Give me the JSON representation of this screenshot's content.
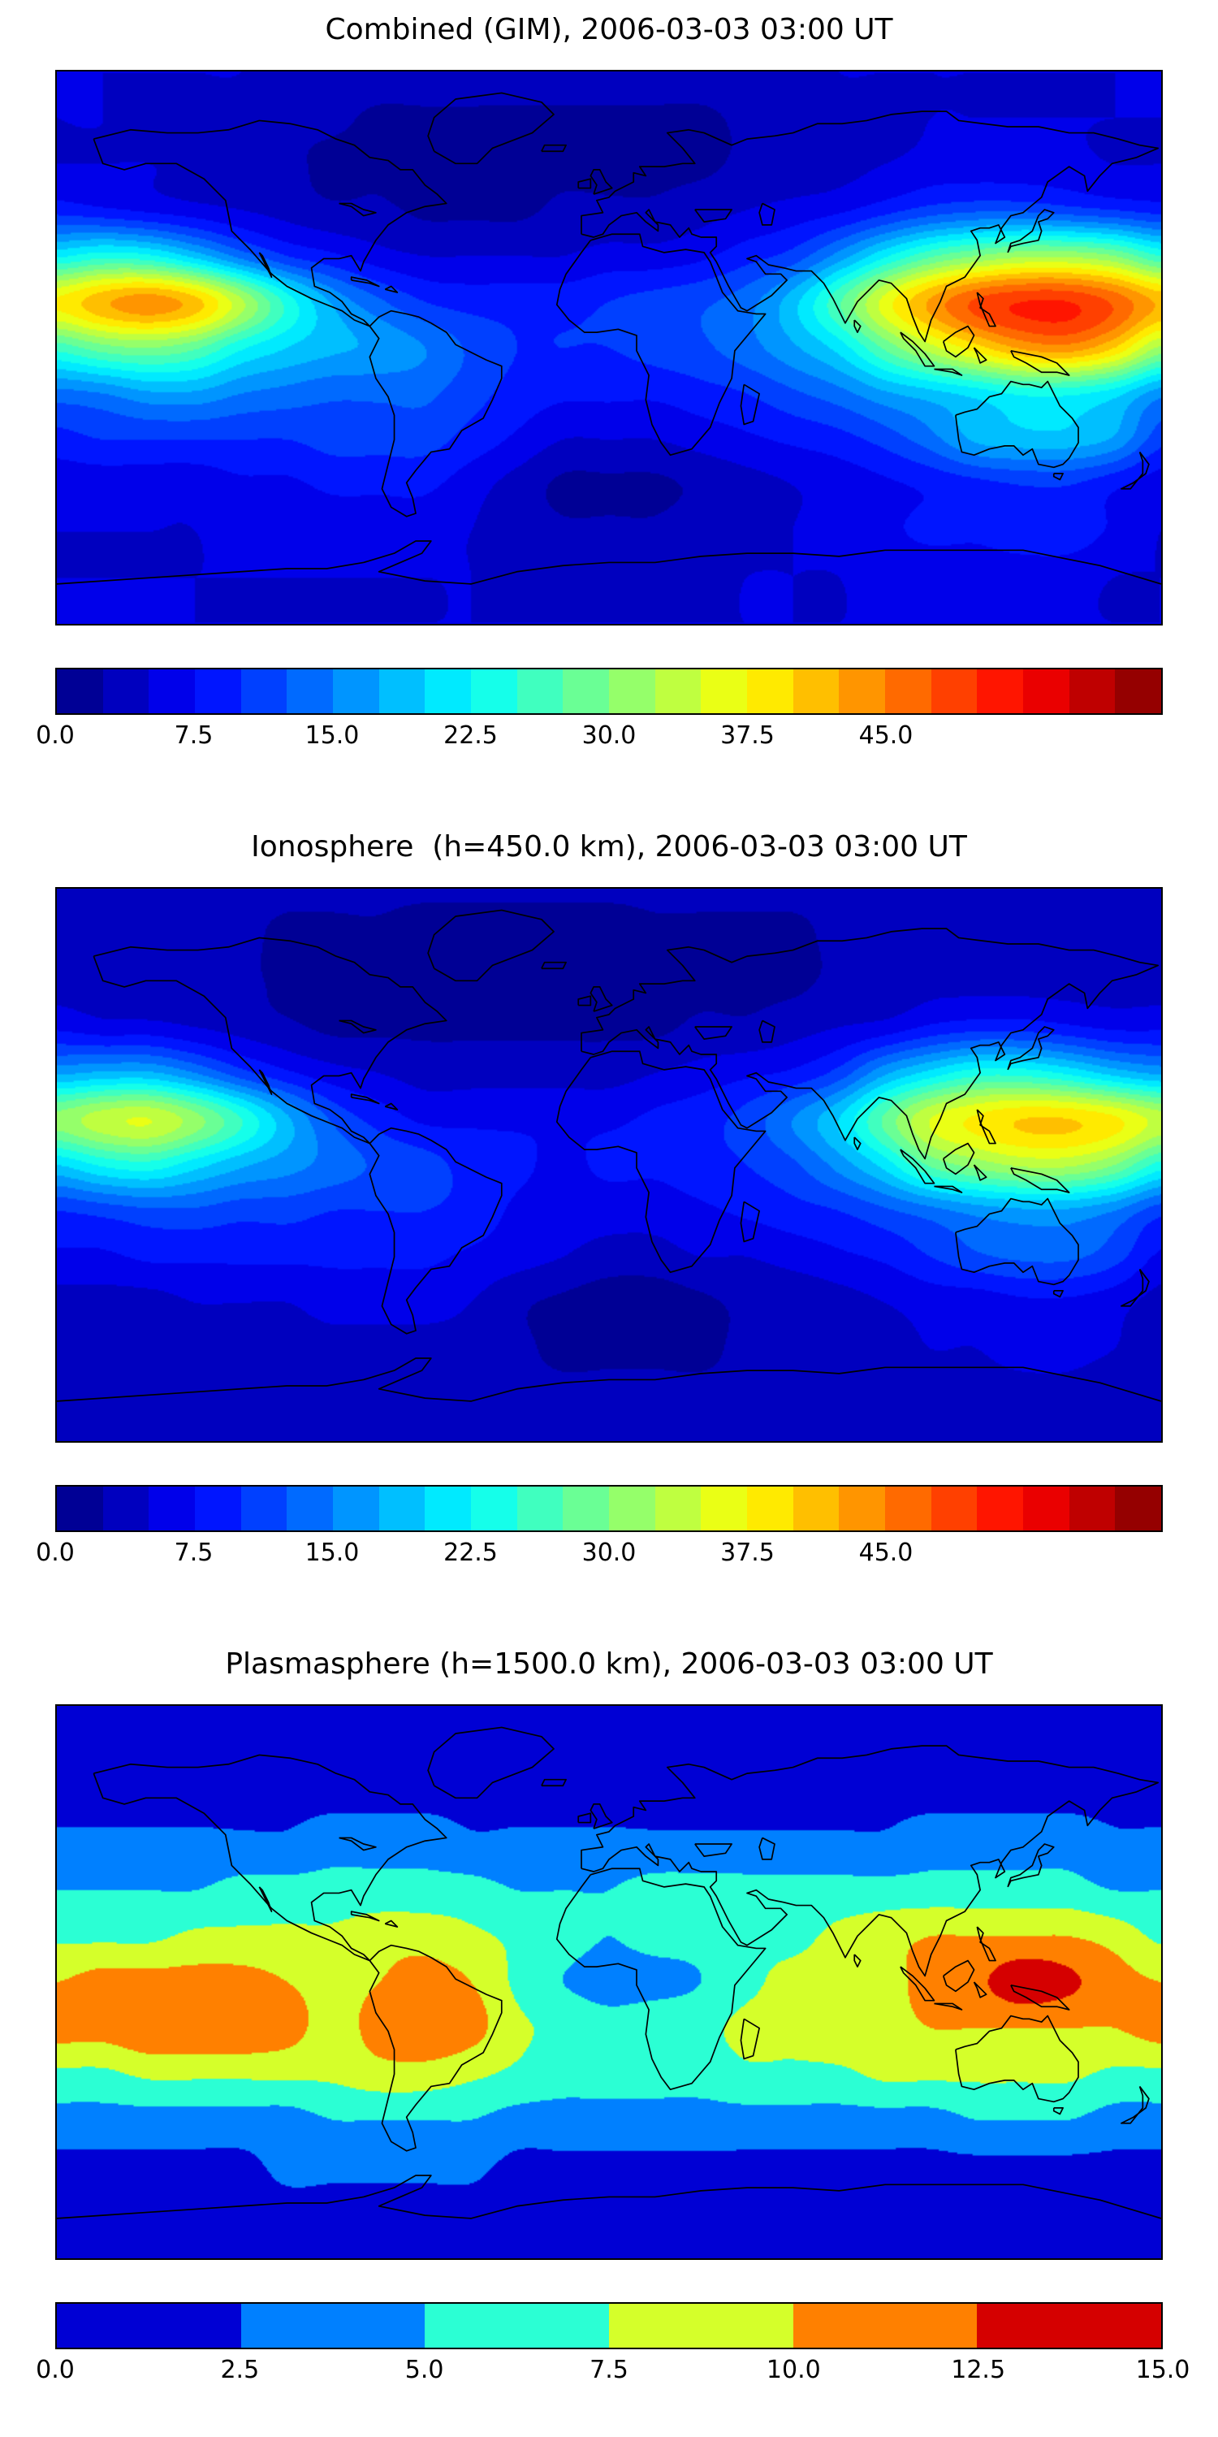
{
  "figure": {
    "background_color": "#ffffff",
    "coastline_color": "#000000",
    "colormap": "jet"
  },
  "chart_data": [
    {
      "type": "heatmap",
      "title": "Combined (GIM), 2006-03-03 03:00 UT",
      "date": "2006-03-03",
      "time_ut": "03:00",
      "projection": "world-equirectangular",
      "colormap": "jet",
      "levels_min": 0,
      "levels_max": 60,
      "levels_step": 2.5,
      "lon_start": -180,
      "lon_step": 15,
      "lat_start": 90,
      "lat_step": -15,
      "colorbar_ticks": [
        {
          "value": 0.0,
          "label": "0.0"
        },
        {
          "value": 7.5,
          "label": "7.5"
        },
        {
          "value": 15.0,
          "label": "15.0"
        },
        {
          "value": 22.5,
          "label": "22.5"
        },
        {
          "value": 30.0,
          "label": "30.0"
        },
        {
          "value": 37.5,
          "label": "37.5"
        },
        {
          "value": 45.0,
          "label": "45.0"
        }
      ],
      "values": [
        [
          5,
          5,
          5,
          5,
          5,
          4,
          4,
          4,
          4,
          4,
          4,
          4,
          4,
          4,
          4,
          4,
          4,
          5,
          5,
          5,
          5,
          5,
          5,
          5,
          5
        ],
        [
          5,
          5,
          4,
          4,
          4,
          3,
          3,
          2,
          2,
          2,
          2,
          2,
          2,
          2,
          2,
          3,
          3,
          4,
          4,
          5,
          5,
          5,
          5,
          5,
          5
        ],
        [
          5,
          5,
          5,
          4,
          4,
          3,
          2,
          2,
          1,
          1,
          2,
          2,
          2,
          2,
          2,
          3,
          3,
          4,
          5,
          6,
          6,
          6,
          6,
          5,
          5
        ],
        [
          9,
          8,
          7,
          6,
          5,
          4,
          3,
          3,
          2,
          2,
          2,
          3,
          3,
          3,
          4,
          5,
          6,
          7,
          9,
          11,
          12,
          12,
          11,
          10,
          9
        ],
        [
          22,
          24,
          23,
          19,
          14,
          10,
          8,
          6,
          5,
          5,
          5,
          5,
          6,
          6,
          7,
          9,
          11,
          16,
          22,
          27,
          30,
          32,
          32,
          30,
          25
        ],
        [
          38,
          42,
          44,
          41,
          33,
          24,
          17,
          13,
          10,
          9,
          9,
          9,
          10,
          11,
          12,
          14,
          19,
          27,
          36,
          43,
          48,
          50,
          50,
          47,
          42
        ],
        [
          26,
          29,
          30,
          28,
          23,
          20,
          18,
          17,
          15,
          12,
          10,
          10,
          10,
          11,
          12,
          14,
          17,
          21,
          28,
          34,
          39,
          43,
          44,
          40,
          32
        ],
        [
          14,
          15,
          17,
          17,
          15,
          14,
          13,
          13,
          13,
          11,
          9,
          8,
          8,
          8,
          9,
          10,
          12,
          14,
          17,
          19,
          21,
          23,
          23,
          21,
          16
        ],
        [
          9,
          10,
          10,
          10,
          10,
          10,
          11,
          11,
          11,
          9,
          7,
          5,
          5,
          5,
          6,
          7,
          8,
          9,
          11,
          14,
          18,
          19,
          19,
          17,
          11
        ],
        [
          6,
          6,
          6,
          6,
          7,
          7,
          8,
          8,
          8,
          6,
          4,
          2,
          2,
          2,
          3,
          4,
          5,
          6,
          7,
          8,
          9,
          10,
          10,
          8,
          6
        ],
        [
          5,
          5,
          5,
          5,
          6,
          6,
          6,
          6,
          6,
          5,
          4,
          3,
          3,
          3,
          4,
          4,
          5,
          6,
          7,
          8,
          8,
          9,
          9,
          7,
          5
        ],
        [
          5,
          5,
          5,
          5,
          5,
          5,
          5,
          5,
          5,
          5,
          4,
          4,
          4,
          4,
          4,
          5,
          5,
          5,
          6,
          6,
          6,
          6,
          6,
          5,
          5
        ],
        [
          5,
          5,
          5,
          5,
          5,
          5,
          5,
          5,
          5,
          5,
          5,
          5,
          5,
          5,
          5,
          5,
          5,
          5,
          5,
          5,
          5,
          5,
          5,
          5,
          5
        ]
      ]
    },
    {
      "type": "heatmap",
      "title": "Ionosphere  (h=450.0 km), 2006-03-03 03:00 UT",
      "date": "2006-03-03",
      "time_ut": "03:00",
      "height_km": 450.0,
      "projection": "world-equirectangular",
      "colormap": "jet",
      "levels_min": 0,
      "levels_max": 60,
      "levels_step": 2.5,
      "lon_start": -180,
      "lon_step": 15,
      "lat_start": 90,
      "lat_step": -15,
      "colorbar_ticks": [
        {
          "value": 0.0,
          "label": "0.0"
        },
        {
          "value": 7.5,
          "label": "7.5"
        },
        {
          "value": 15.0,
          "label": "15.0"
        },
        {
          "value": 22.5,
          "label": "22.5"
        },
        {
          "value": 30.0,
          "label": "30.0"
        },
        {
          "value": 37.5,
          "label": "37.5"
        },
        {
          "value": 45.0,
          "label": "45.0"
        }
      ],
      "values": [
        [
          3,
          3,
          3,
          3,
          3,
          3,
          3,
          3,
          3,
          3,
          3,
          3,
          3,
          3,
          3,
          3,
          3,
          3,
          3,
          3,
          3,
          3,
          3,
          3,
          3
        ],
        [
          3,
          3,
          3,
          3,
          3,
          2,
          2,
          2,
          1,
          1,
          1,
          1,
          1,
          2,
          2,
          2,
          2,
          3,
          3,
          3,
          3,
          3,
          3,
          3,
          3
        ],
        [
          4,
          4,
          3,
          3,
          3,
          2,
          2,
          1,
          1,
          1,
          1,
          1,
          1,
          2,
          2,
          2,
          2,
          3,
          3,
          4,
          4,
          4,
          4,
          4,
          4
        ],
        [
          7,
          6,
          6,
          5,
          4,
          3,
          2,
          2,
          2,
          2,
          2,
          2,
          2,
          2,
          3,
          3,
          4,
          5,
          6,
          8,
          9,
          9,
          8,
          7,
          7
        ],
        [
          17,
          18,
          18,
          15,
          11,
          8,
          6,
          5,
          4,
          4,
          4,
          4,
          4,
          5,
          6,
          7,
          8,
          11,
          17,
          21,
          24,
          24,
          22,
          19,
          17
        ],
        [
          31,
          34,
          35,
          31,
          25,
          18,
          12,
          9,
          7,
          7,
          7,
          7,
          7,
          8,
          9,
          11,
          15,
          20,
          28,
          35,
          38,
          40,
          40,
          38,
          34
        ],
        [
          20,
          23,
          24,
          21,
          18,
          16,
          14,
          12,
          11,
          9,
          8,
          7,
          8,
          8,
          9,
          10,
          12,
          16,
          21,
          28,
          31,
          33,
          33,
          30,
          24
        ],
        [
          10,
          11,
          12,
          12,
          11,
          11,
          10,
          10,
          10,
          9,
          7,
          6,
          6,
          6,
          7,
          8,
          9,
          10,
          12,
          14,
          16,
          17,
          17,
          15,
          11
        ],
        [
          7,
          7,
          8,
          8,
          8,
          8,
          8,
          8,
          8,
          7,
          6,
          5,
          4,
          4,
          5,
          5,
          6,
          7,
          8,
          10,
          12,
          13,
          13,
          11,
          7
        ],
        [
          4,
          4,
          4,
          5,
          5,
          5,
          6,
          6,
          6,
          5,
          3,
          2,
          1,
          1,
          2,
          3,
          3,
          4,
          5,
          6,
          6,
          7,
          7,
          6,
          4
        ],
        [
          3,
          3,
          3,
          4,
          4,
          4,
          4,
          4,
          4,
          4,
          3,
          2,
          2,
          2,
          2,
          3,
          3,
          4,
          4,
          5,
          5,
          6,
          6,
          5,
          3
        ],
        [
          3,
          3,
          3,
          3,
          3,
          3,
          3,
          3,
          3,
          3,
          3,
          3,
          3,
          3,
          3,
          3,
          3,
          3,
          4,
          4,
          4,
          4,
          4,
          3,
          3
        ],
        [
          3,
          3,
          3,
          3,
          3,
          3,
          3,
          3,
          3,
          3,
          3,
          3,
          3,
          3,
          3,
          3,
          3,
          3,
          3,
          3,
          3,
          3,
          3,
          3,
          3
        ]
      ]
    },
    {
      "type": "heatmap",
      "title": "Plasmasphere (h=1500.0 km), 2006-03-03 03:00 UT",
      "date": "2006-03-03",
      "time_ut": "03:00",
      "height_km": 1500.0,
      "projection": "world-equirectangular",
      "colormap": "jet",
      "levels_min": 0,
      "levels_max": 15,
      "levels_step": 2.5,
      "lon_start": -180,
      "lon_step": 15,
      "lat_start": 90,
      "lat_step": -15,
      "colorbar_ticks": [
        {
          "value": 0.0,
          "label": "0.0"
        },
        {
          "value": 2.5,
          "label": "2.5"
        },
        {
          "value": 5.0,
          "label": "5.0"
        },
        {
          "value": 7.5,
          "label": "7.5"
        },
        {
          "value": 10.0,
          "label": "10.0"
        },
        {
          "value": 12.5,
          "label": "12.5"
        },
        {
          "value": 15.0,
          "label": "15.0"
        }
      ],
      "values": [
        [
          2,
          2,
          2,
          2,
          2,
          2,
          2,
          2,
          2,
          2,
          2,
          2,
          2,
          2,
          2,
          2,
          2,
          2,
          2,
          2,
          2,
          2,
          2,
          2,
          2
        ],
        [
          2,
          2,
          2,
          2,
          2,
          2,
          2,
          2,
          2,
          2,
          2,
          2,
          2,
          2,
          2,
          2,
          2,
          2,
          2,
          2,
          2,
          2,
          2,
          2,
          2
        ],
        [
          2,
          2,
          2,
          2,
          2,
          2,
          2,
          2,
          2,
          2,
          2,
          2,
          2,
          2,
          2,
          2,
          2,
          2,
          2,
          2,
          2,
          2,
          2,
          2,
          2
        ],
        [
          3,
          3,
          3,
          3,
          3,
          3,
          4,
          4,
          4,
          3,
          3,
          3,
          3,
          3,
          3,
          3,
          3,
          3,
          3,
          4,
          4,
          4,
          4,
          3,
          3
        ],
        [
          5,
          5,
          5,
          5,
          6,
          6,
          6,
          6,
          6,
          6,
          5,
          5,
          5,
          6,
          6,
          6,
          6,
          6,
          6,
          6,
          6,
          6,
          6,
          5,
          5
        ],
        [
          7,
          7,
          7,
          8,
          8,
          8,
          8,
          9,
          9,
          8,
          7,
          6,
          5,
          6,
          6,
          7,
          7,
          8,
          9,
          10,
          10,
          10,
          10,
          9,
          7
        ],
        [
          10,
          11,
          11,
          11,
          11,
          10,
          9,
          10,
          11,
          10,
          7,
          5,
          4,
          4,
          5,
          7,
          8,
          8,
          9,
          11,
          12,
          14,
          13,
          11,
          10
        ],
        [
          11,
          11,
          12,
          12,
          12,
          11,
          9,
          11,
          12,
          11,
          8,
          7,
          6,
          7,
          7,
          8,
          8,
          9,
          9,
          10,
          10,
          10,
          10,
          10,
          11
        ],
        [
          7,
          7,
          8,
          8,
          8,
          8,
          8,
          9,
          9,
          8,
          7,
          6,
          6,
          6,
          6,
          7,
          7,
          7,
          8,
          8,
          8,
          8,
          8,
          7,
          7
        ],
        [
          4,
          4,
          4,
          4,
          4,
          4,
          5,
          5,
          5,
          5,
          4,
          4,
          4,
          4,
          4,
          4,
          4,
          4,
          4,
          4,
          5,
          5,
          5,
          4,
          4
        ],
        [
          2,
          2,
          2,
          2,
          2,
          3,
          3,
          3,
          3,
          3,
          2,
          2,
          2,
          2,
          2,
          2,
          2,
          2,
          2,
          2,
          2,
          2,
          2,
          2,
          2
        ],
        [
          2,
          2,
          2,
          2,
          2,
          2,
          2,
          2,
          2,
          2,
          2,
          2,
          2,
          2,
          2,
          2,
          2,
          2,
          2,
          2,
          2,
          2,
          2,
          2,
          2
        ],
        [
          2,
          2,
          2,
          2,
          2,
          2,
          2,
          2,
          2,
          2,
          2,
          2,
          2,
          2,
          2,
          2,
          2,
          2,
          2,
          2,
          2,
          2,
          2,
          2,
          2
        ]
      ]
    }
  ]
}
